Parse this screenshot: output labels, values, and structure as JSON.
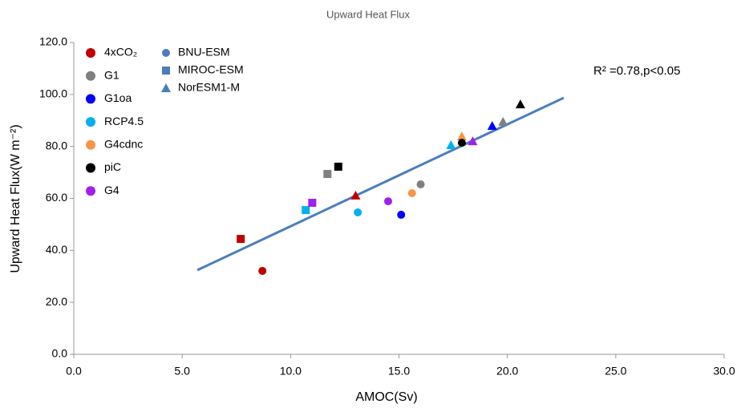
{
  "chart_data": {
    "type": "scatter",
    "title": "Upward Heat Flux",
    "x_label": "AMOC(Sv)",
    "y_label": "Upward Heat Flux(W m⁻²)",
    "annotation": "R² =0.78,p<0.05",
    "xlim": [
      0,
      30
    ],
    "ylim": [
      0,
      120
    ],
    "xticks": [
      {
        "value": 0,
        "label": "0.0"
      },
      {
        "value": 5,
        "label": "5.0"
      },
      {
        "value": 10,
        "label": "10.0"
      },
      {
        "value": 15,
        "label": "15.0"
      },
      {
        "value": 20,
        "label": "20.0"
      },
      {
        "value": 25,
        "label": "25.0"
      },
      {
        "value": 30,
        "label": "30.0"
      }
    ],
    "yticks": [
      {
        "value": 0,
        "label": "0.0"
      },
      {
        "value": 20,
        "label": "20.0"
      },
      {
        "value": 40,
        "label": "40.0"
      },
      {
        "value": 60,
        "label": "60.0"
      },
      {
        "value": 80,
        "label": "80.0"
      },
      {
        "value": 100,
        "label": "100.0"
      },
      {
        "value": 120,
        "label": "120.0"
      }
    ],
    "markers": [
      {
        "name": "BNU-ESM",
        "shape": "circle"
      },
      {
        "name": "MIROC-ESM",
        "shape": "square"
      },
      {
        "name": "NorESM1-M",
        "shape": "triangle"
      }
    ],
    "marker_legend_color": "#4a7ebb",
    "series": [
      {
        "name": "4xCO₂",
        "color": "#c00000",
        "x": [
          8.7,
          7.7,
          13.0
        ],
        "values": [
          32.1,
          44.4,
          61.1
        ]
      },
      {
        "name": "G1",
        "color": "#808080",
        "x": [
          16.0,
          11.7,
          19.8
        ],
        "values": [
          65.4,
          69.4,
          89.5
        ]
      },
      {
        "name": "G1oa",
        "color": "#0000ff",
        "x": [
          15.1,
          null,
          19.3
        ],
        "values": [
          53.7,
          null,
          87.9
        ]
      },
      {
        "name": "RCP4.5",
        "color": "#00b0f0",
        "x": [
          13.1,
          10.7,
          17.4
        ],
        "values": [
          54.6,
          55.5,
          80.5
        ]
      },
      {
        "name": "G4cdnc",
        "color": "#f79646",
        "x": [
          15.6,
          null,
          17.9
        ],
        "values": [
          62.0,
          null,
          83.9
        ]
      },
      {
        "name": "piC",
        "color": "#000000",
        "x": [
          17.9,
          12.2,
          20.6
        ],
        "values": [
          81.4,
          72.2,
          96.2
        ]
      },
      {
        "name": "G4",
        "color": "#a020f0",
        "x": [
          14.5,
          11.0,
          18.4
        ],
        "values": [
          58.9,
          58.3,
          82.0
        ]
      }
    ],
    "fit_line": {
      "color": "#4a7ebb",
      "x": [
        5.7,
        22.6
      ],
      "values": [
        32.4,
        98.7
      ]
    }
  }
}
